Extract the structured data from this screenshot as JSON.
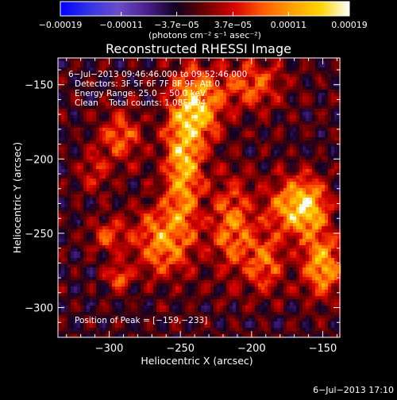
{
  "chart_data": {
    "type": "heatmap",
    "title": "Reconstructed RHESSI Image",
    "xlabel": "Heliocentric X (arcsec)",
    "ylabel": "Heliocentric Y (arcsec)",
    "xlim": [
      -336,
      -138
    ],
    "ylim": [
      -320,
      -132
    ],
    "xticks": [
      -300,
      -250,
      -200,
      -150
    ],
    "xtick_labels": [
      "−300",
      "−250",
      "−200",
      "−150"
    ],
    "yticks": [
      -150,
      -200,
      -250,
      -300
    ],
    "ytick_labels": [
      "−150",
      "−200",
      "−250",
      "−300"
    ],
    "colorbar": {
      "min": -0.00019,
      "max": 0.00019,
      "tick_values": [
        -0.00019,
        -0.00011,
        -3.7e-05,
        3.7e-05,
        0.00011,
        0.00019
      ],
      "tick_labels": [
        "−0.00019",
        "−0.00011",
        "−3.7e−05",
        "3.7e−05",
        "0.00011",
        "0.00019"
      ],
      "unit_label": "(photons cm⁻² s⁻¹ asec⁻²)"
    },
    "annotations": {
      "time_range": "6−Jul−2013 09:46:46.000 to 09:52:46.000",
      "detectors": "Detectors: 3F 5F 6F 7F 8F 9F, Att 0",
      "energy_range": "Energy Range: 25.0 − 50.0 keV",
      "method_counts": "Clean    Total counts: 1.08E+04",
      "peak_position": "Position of Peak = [−159,−233]"
    },
    "peak": [
      -159,
      -233
    ],
    "sources": [
      {
        "x": -248,
        "y": -200,
        "sx": 9,
        "sy": 36,
        "amp": 0.00019
      },
      {
        "x": -235,
        "y": -165,
        "sx": 10,
        "sy": 16,
        "amp": 0.00017
      },
      {
        "x": -265,
        "y": -255,
        "sx": 13,
        "sy": 16,
        "amp": 0.00015
      },
      {
        "x": -213,
        "y": -245,
        "sx": 11,
        "sy": 22,
        "amp": 0.00014
      },
      {
        "x": -200,
        "y": -150,
        "sx": 15,
        "sy": 12,
        "amp": 0.00012
      },
      {
        "x": -190,
        "y": -270,
        "sx": 9,
        "sy": 14,
        "amp": 0.00012
      },
      {
        "x": -159,
        "y": -233,
        "sx": 9,
        "sy": 14,
        "amp": 0.00019
      },
      {
        "x": -150,
        "y": -272,
        "sx": 10,
        "sy": 14,
        "amp": 0.00018
      },
      {
        "x": -175,
        "y": -232,
        "sx": 10,
        "sy": 13,
        "amp": 0.00014
      },
      {
        "x": -292,
        "y": -185,
        "sx": 10,
        "sy": 12,
        "amp": 0.00012
      },
      {
        "x": -300,
        "y": -252,
        "sx": 9,
        "sy": 8,
        "amp": 0.0001
      },
      {
        "x": -293,
        "y": -280,
        "sx": 6,
        "sy": 6,
        "amp": 0.00013
      },
      {
        "x": -310,
        "y": -210,
        "sx": 8,
        "sy": 10,
        "amp": 7e-05
      }
    ]
  },
  "footer": {
    "timestamp": "6−Jul−2013 17:10"
  },
  "colors": {
    "background": "#000000",
    "text": "#ffffff",
    "colormap": [
      "#0000ff",
      "#3333e6",
      "#6b4dc8",
      "#4a1f8c",
      "#110022",
      "#6b0000",
      "#d60000",
      "#ff5a00",
      "#ff9f00",
      "#ffd400",
      "#ffffff"
    ]
  }
}
